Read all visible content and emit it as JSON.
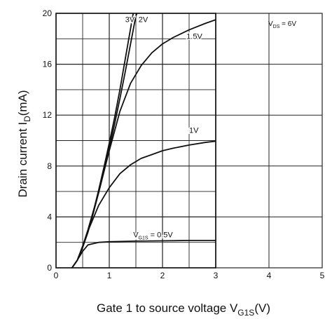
{
  "chart_data": {
    "type": "line",
    "title": "",
    "xlabel": "Gate 1 to source voltage V",
    "xlabel_sub": "G1S",
    "xlabel_unit": "(V)",
    "ylabel": "Drain current I",
    "ylabel_sub": "D",
    "ylabel_unit": "(mA)",
    "xlim": [
      0,
      5
    ],
    "ylim": [
      0,
      20
    ],
    "x_ticks": [
      0,
      1,
      2,
      3,
      4,
      5
    ],
    "y_ticks": [
      0,
      4,
      8,
      12,
      16,
      20
    ],
    "grid": true,
    "annotation": {
      "text": "V",
      "sub": "DS",
      "rest": " = 6V"
    },
    "series": [
      {
        "name": "3V",
        "label_prefix": "",
        "label_sub": "",
        "label_rest": "3V",
        "label_anchor": [
          1.3,
          19.3
        ],
        "points": [
          [
            0.3,
            0
          ],
          [
            0.4,
            0.6
          ],
          [
            0.5,
            1.6
          ],
          [
            0.6,
            2.9
          ],
          [
            0.7,
            4.4
          ],
          [
            0.8,
            6.1
          ],
          [
            0.9,
            7.9
          ],
          [
            1.0,
            9.8
          ],
          [
            1.1,
            11.8
          ],
          [
            1.2,
            14.0
          ],
          [
            1.3,
            16.4
          ],
          [
            1.4,
            18.8
          ],
          [
            1.45,
            20
          ]
        ]
      },
      {
        "name": "2V",
        "label_prefix": "",
        "label_sub": "",
        "label_rest": "2V",
        "label_anchor": [
          1.55,
          19.3
        ],
        "points": [
          [
            0.3,
            0
          ],
          [
            0.4,
            0.6
          ],
          [
            0.5,
            1.6
          ],
          [
            0.6,
            2.8
          ],
          [
            0.7,
            4.3
          ],
          [
            0.8,
            5.9
          ],
          [
            0.9,
            7.6
          ],
          [
            1.0,
            9.4
          ],
          [
            1.1,
            11.3
          ],
          [
            1.2,
            13.3
          ],
          [
            1.3,
            15.4
          ],
          [
            1.4,
            17.6
          ],
          [
            1.5,
            19.8
          ],
          [
            1.52,
            20
          ]
        ]
      },
      {
        "name": "1.5V",
        "label_prefix": "",
        "label_sub": "",
        "label_rest": "1.5V",
        "label_anchor": [
          2.45,
          18.0
        ],
        "points": [
          [
            0.3,
            0
          ],
          [
            0.4,
            0.6
          ],
          [
            0.5,
            1.7
          ],
          [
            0.6,
            3.0
          ],
          [
            0.8,
            5.9
          ],
          [
            1.0,
            9.2
          ],
          [
            1.2,
            12.3
          ],
          [
            1.4,
            14.5
          ],
          [
            1.6,
            15.9
          ],
          [
            1.8,
            16.9
          ],
          [
            2.0,
            17.6
          ],
          [
            2.2,
            18.1
          ],
          [
            2.5,
            18.7
          ],
          [
            2.8,
            19.2
          ],
          [
            3.0,
            19.5
          ]
        ]
      },
      {
        "name": "1V",
        "label_prefix": "",
        "label_sub": "",
        "label_rest": "1V",
        "label_anchor": [
          2.5,
          10.6
        ],
        "points": [
          [
            0.3,
            0
          ],
          [
            0.4,
            0.6
          ],
          [
            0.5,
            1.7
          ],
          [
            0.6,
            2.9
          ],
          [
            0.8,
            4.9
          ],
          [
            1.0,
            6.3
          ],
          [
            1.2,
            7.4
          ],
          [
            1.4,
            8.1
          ],
          [
            1.6,
            8.6
          ],
          [
            1.8,
            8.9
          ],
          [
            2.0,
            9.2
          ],
          [
            2.2,
            9.4
          ],
          [
            2.5,
            9.65
          ],
          [
            2.8,
            9.85
          ],
          [
            3.0,
            9.95
          ]
        ]
      },
      {
        "name": "0.5V",
        "label_prefix": "V",
        "label_sub": "G1S",
        "label_rest": " = 0.5V",
        "label_anchor": [
          1.45,
          2.4
        ],
        "points": [
          [
            0.3,
            0
          ],
          [
            0.4,
            0.6
          ],
          [
            0.5,
            1.3
          ],
          [
            0.6,
            1.8
          ],
          [
            0.8,
            2.0
          ],
          [
            1.0,
            2.05
          ],
          [
            1.5,
            2.1
          ],
          [
            2.0,
            2.12
          ],
          [
            2.5,
            2.15
          ],
          [
            3.0,
            2.15
          ]
        ]
      }
    ]
  }
}
